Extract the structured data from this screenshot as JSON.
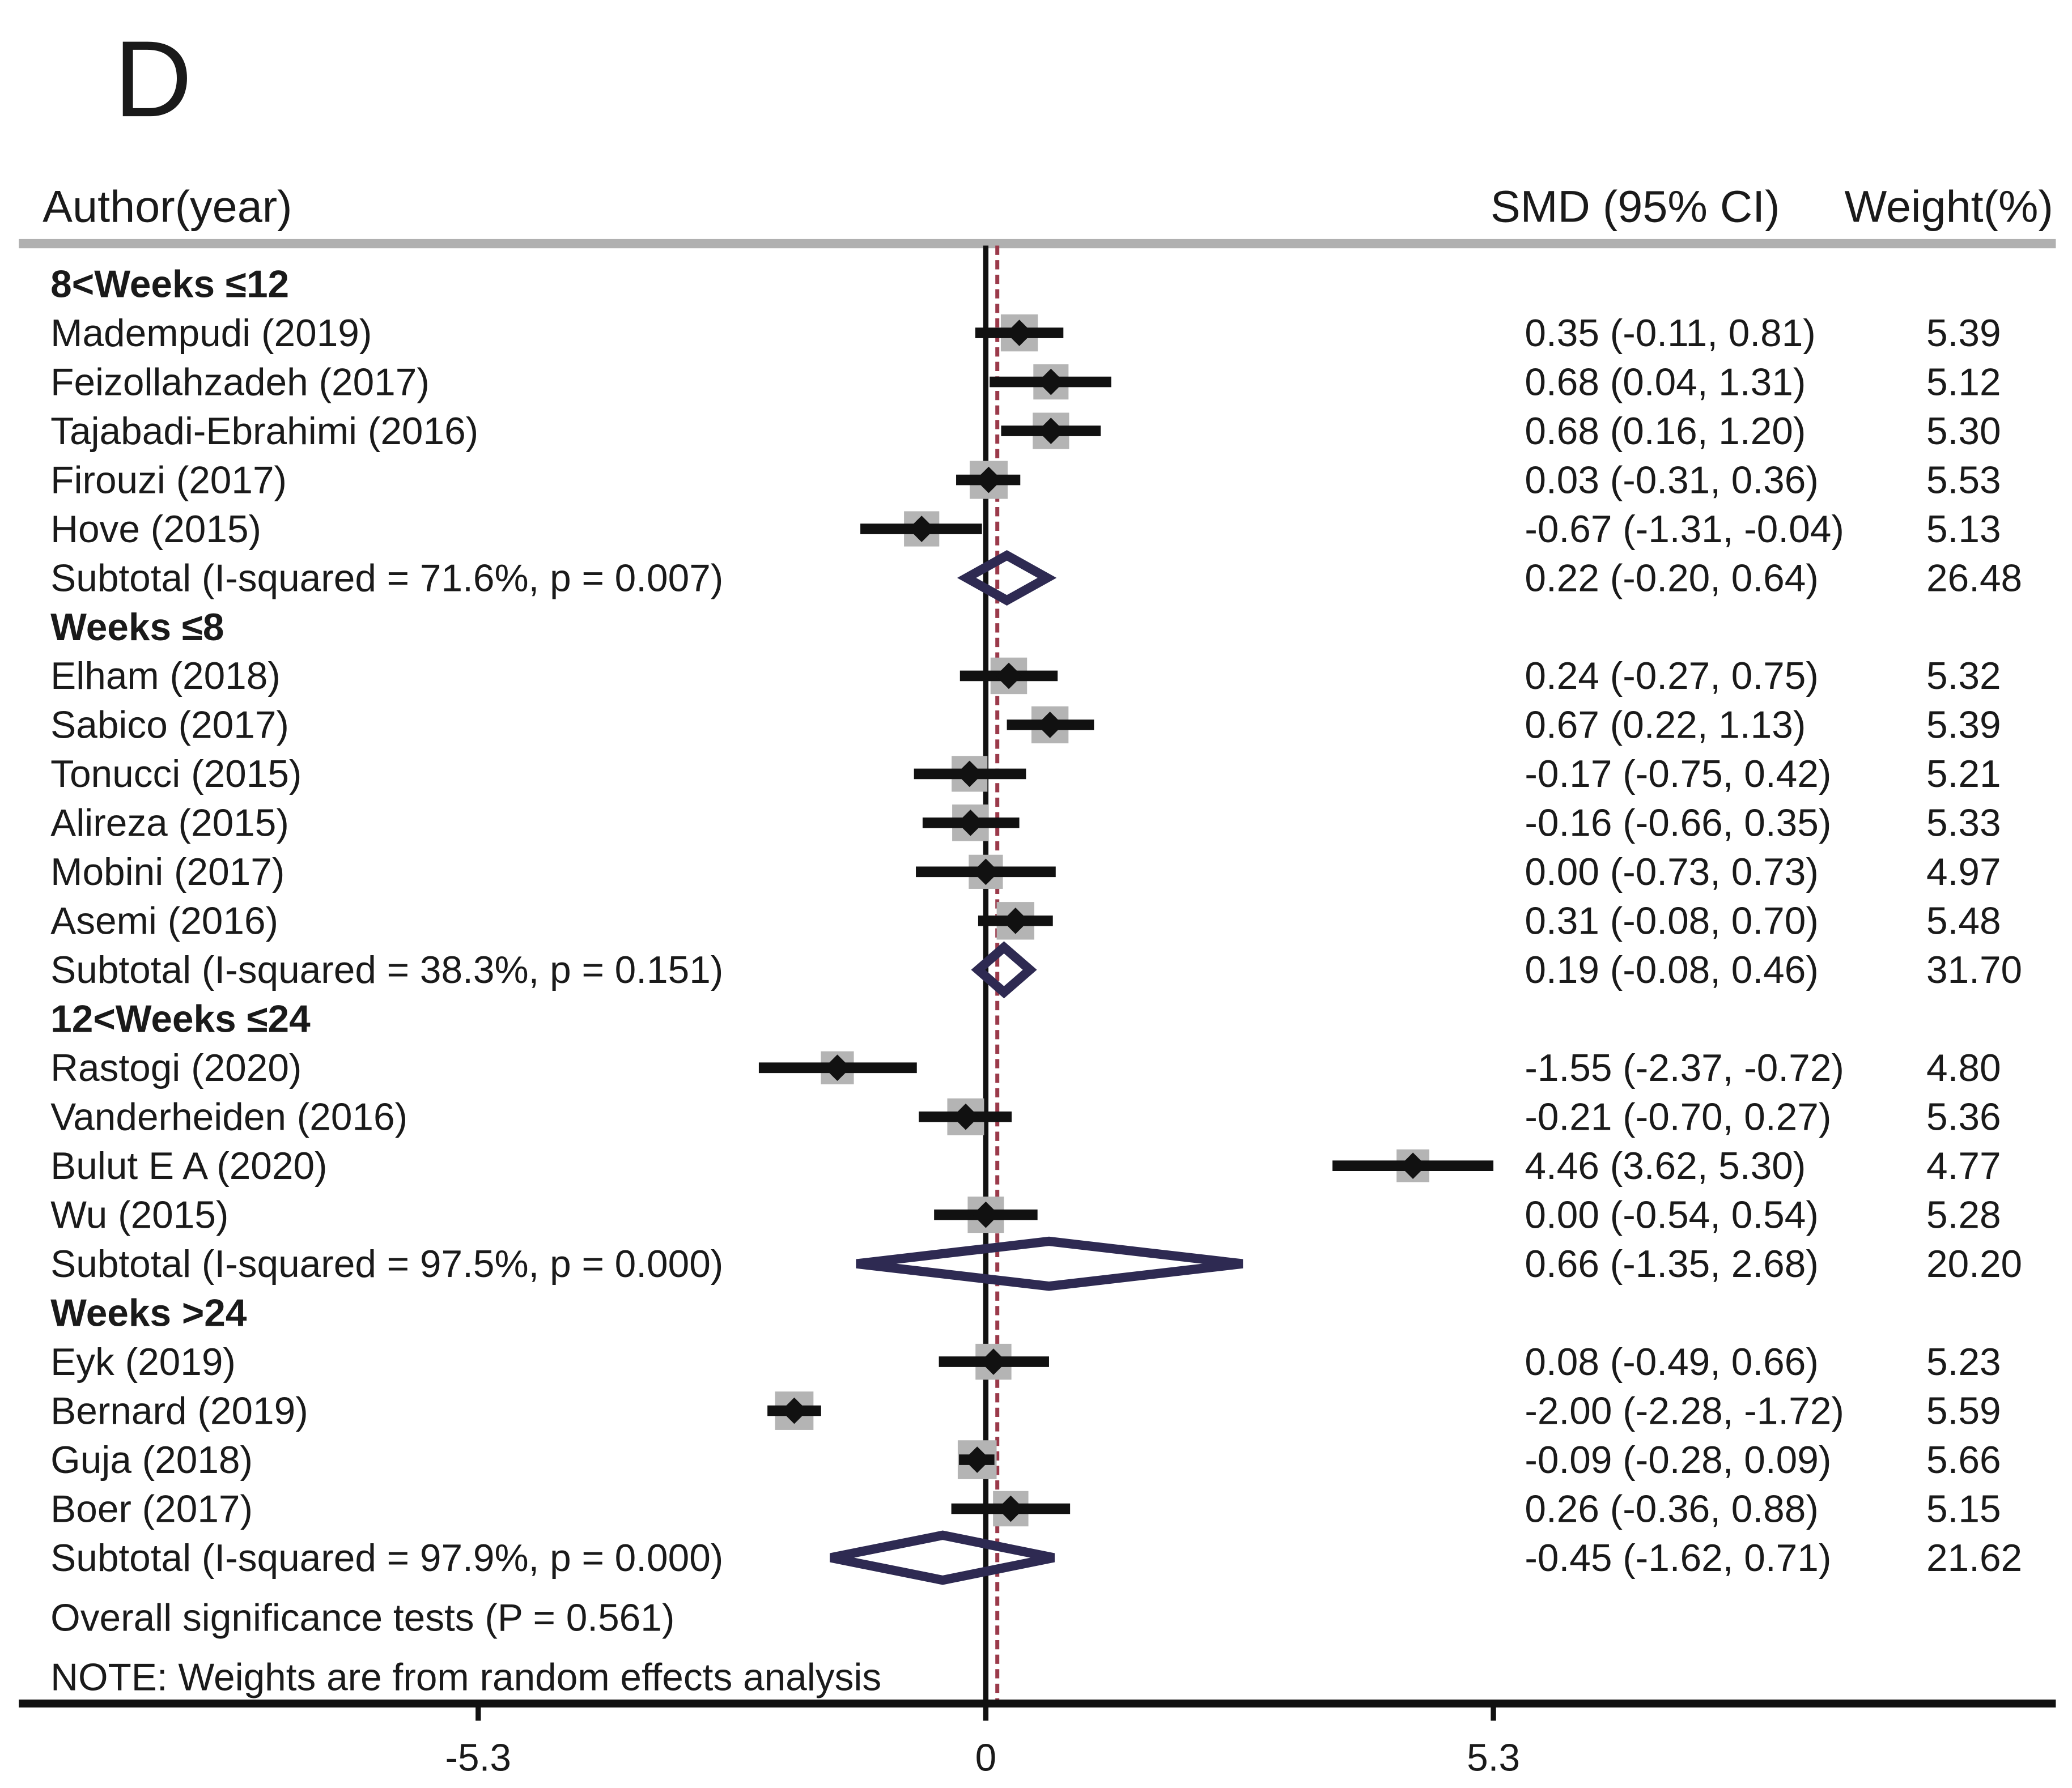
{
  "panel_label": "D",
  "headers": {
    "author": "Author(year)",
    "smd": "SMD (95% CI)",
    "weight": "Weight(%)"
  },
  "footer": {
    "overall": "Overall significance tests  (P = 0.561)",
    "note": "NOTE: Weights are from random effects analysis"
  },
  "colors": {
    "ci_line": "#111111",
    "point": "#111111",
    "weight_box": "#b4b4b4",
    "diamond": "#2e2a52",
    "pooled_line": "#9b3a4a",
    "rule": "#b0b0b0"
  },
  "chart_data": {
    "type": "forest",
    "xlim": [
      -6.6,
      11.2
    ],
    "xticks": [
      {
        "value": -5.3,
        "label": "-5.3"
      },
      {
        "value": 0,
        "label": "0"
      },
      {
        "value": 5.3,
        "label": "5.3"
      }
    ],
    "null_line": 0,
    "overall_effect": 0.12,
    "rows": [
      {
        "kind": "group",
        "label": "8<Weeks ≤12"
      },
      {
        "kind": "study",
        "label": "Madempudi (2019)",
        "est": 0.35,
        "lo": -0.11,
        "hi": 0.81,
        "ci_text": "0.35 (-0.11, 0.81)",
        "weight": "5.39"
      },
      {
        "kind": "study",
        "label": " Feizollahzadeh (2017)",
        "est": 0.68,
        "lo": 0.04,
        "hi": 1.31,
        "ci_text": "0.68 (0.04, 1.31)",
        "weight": "5.12"
      },
      {
        "kind": "study",
        "label": "Tajabadi-Ebrahimi (2016)",
        "est": 0.68,
        "lo": 0.16,
        "hi": 1.2,
        "ci_text": "0.68 (0.16, 1.20)",
        "weight": "5.30"
      },
      {
        "kind": "study",
        "label": " Firouzi (2017)",
        "est": 0.03,
        "lo": -0.31,
        "hi": 0.36,
        "ci_text": "0.03 (-0.31, 0.36)",
        "weight": "5.53"
      },
      {
        "kind": "study",
        "label": "Hove  (2015)",
        "est": -0.67,
        "lo": -1.31,
        "hi": -0.04,
        "ci_text": "-0.67 (-1.31, -0.04)",
        "weight": "5.13"
      },
      {
        "kind": "subtotal",
        "label": "Subtotal  (I-squared = 71.6%, p = 0.007)",
        "est": 0.22,
        "lo": -0.2,
        "hi": 0.64,
        "ci_text": "0.22 (-0.20, 0.64)",
        "weight": "26.48"
      },
      {
        "kind": "group",
        "label": "Weeks ≤8"
      },
      {
        "kind": "study",
        "label": " Elham (2018)",
        "est": 0.24,
        "lo": -0.27,
        "hi": 0.75,
        "ci_text": "0.24 (-0.27, 0.75)",
        "weight": "5.32"
      },
      {
        "kind": "study",
        "label": "Sabico (2017)",
        "est": 0.67,
        "lo": 0.22,
        "hi": 1.13,
        "ci_text": "0.67 (0.22, 1.13)",
        "weight": "5.39"
      },
      {
        "kind": "study",
        "label": "Tonucci (2015)",
        "est": -0.17,
        "lo": -0.75,
        "hi": 0.42,
        "ci_text": "-0.17 (-0.75, 0.42)",
        "weight": "5.21"
      },
      {
        "kind": "study",
        "label": "Alireza (2015)",
        "est": -0.16,
        "lo": -0.66,
        "hi": 0.35,
        "ci_text": "-0.16 (-0.66, 0.35)",
        "weight": "5.33"
      },
      {
        "kind": "study",
        "label": "Mobini (2017)",
        "est": 0.0,
        "lo": -0.73,
        "hi": 0.73,
        "ci_text": "0.00 (-0.73, 0.73)",
        "weight": "4.97"
      },
      {
        "kind": "study",
        "label": " Asemi (2016)",
        "est": 0.31,
        "lo": -0.08,
        "hi": 0.7,
        "ci_text": "0.31 (-0.08, 0.70)",
        "weight": "5.48"
      },
      {
        "kind": "subtotal",
        "label": "Subtotal  (I-squared = 38.3%, p = 0.151)",
        "est": 0.19,
        "lo": -0.08,
        "hi": 0.46,
        "ci_text": "0.19 (-0.08, 0.46)",
        "weight": "31.70"
      },
      {
        "kind": "group",
        "label": "12<Weeks ≤24"
      },
      {
        "kind": "study",
        "label": "Rastogi  (2020)",
        "est": -1.55,
        "lo": -2.37,
        "hi": -0.72,
        "ci_text": "-1.55 (-2.37, -0.72)",
        "weight": "4.80"
      },
      {
        "kind": "study",
        "label": "Vanderheiden  (2016)",
        "est": -0.21,
        "lo": -0.7,
        "hi": 0.27,
        "ci_text": "-0.21 (-0.70, 0.27)",
        "weight": "5.36"
      },
      {
        "kind": "study",
        "label": "Bulut E A  (2020)",
        "est": 4.46,
        "lo": 3.62,
        "hi": 5.3,
        "ci_text": "4.46 (3.62, 5.30)",
        "weight": "4.77"
      },
      {
        "kind": "study",
        "label": "Wu  (2015)",
        "est": 0.0,
        "lo": -0.54,
        "hi": 0.54,
        "ci_text": "0.00 (-0.54, 0.54)",
        "weight": "5.28"
      },
      {
        "kind": "subtotal",
        "label": "Subtotal  (I-squared = 97.5%, p = 0.000)",
        "est": 0.66,
        "lo": -1.35,
        "hi": 2.68,
        "ci_text": "0.66 (-1.35, 2.68)",
        "weight": "20.20"
      },
      {
        "kind": "group",
        "label": "Weeks >24"
      },
      {
        "kind": "study",
        "label": "Eyk (2019)",
        "est": 0.08,
        "lo": -0.49,
        "hi": 0.66,
        "ci_text": "0.08 (-0.49, 0.66)",
        "weight": "5.23"
      },
      {
        "kind": "study",
        "label": "Bernard  (2019)",
        "est": -2.0,
        "lo": -2.28,
        "hi": -1.72,
        "ci_text": "-2.00 (-2.28, -1.72)",
        "weight": "5.59"
      },
      {
        "kind": "study",
        "label": "Guja (2018)",
        "est": -0.09,
        "lo": -0.28,
        "hi": 0.09,
        "ci_text": "-0.09 (-0.28, 0.09)",
        "weight": "5.66"
      },
      {
        "kind": "study",
        "label": "Boer  (2017)",
        "est": 0.26,
        "lo": -0.36,
        "hi": 0.88,
        "ci_text": "0.26 (-0.36, 0.88)",
        "weight": "5.15"
      },
      {
        "kind": "subtotal",
        "label": "Subtotal  (I-squared = 97.9%, p = 0.000)",
        "est": -0.45,
        "lo": -1.62,
        "hi": 0.71,
        "ci_text": "-0.45 (-1.62, 0.71)",
        "weight": "21.62"
      }
    ]
  }
}
